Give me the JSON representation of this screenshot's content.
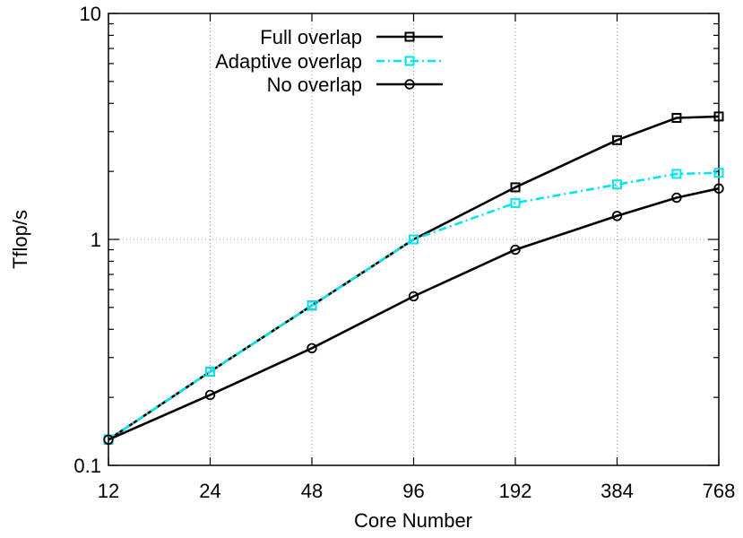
{
  "chart_data": {
    "type": "line",
    "xlabel": "Core Number",
    "ylabel": "Tflop/s",
    "x_scale": "log2",
    "y_scale": "log10",
    "xlim": [
      12,
      768
    ],
    "ylim": [
      0.1,
      10
    ],
    "x_ticks": [
      12,
      24,
      48,
      96,
      192,
      384,
      768
    ],
    "x_tick_labels": [
      "12",
      "24",
      "48",
      "96",
      "192",
      "384",
      "768"
    ],
    "y_ticks": [
      0.1,
      1,
      10
    ],
    "y_tick_labels": [
      "0.1",
      "1",
      "10"
    ],
    "grid": true,
    "legend_position": "top-center",
    "series": [
      {
        "name": "Full overlap",
        "color": "#000000",
        "marker": "square",
        "dash": "solid",
        "x": [
          12,
          24,
          48,
          96,
          192,
          384,
          576,
          768
        ],
        "y": [
          0.13,
          0.26,
          0.51,
          1.0,
          1.7,
          2.75,
          3.45,
          3.5
        ]
      },
      {
        "name": "Adaptive overlap",
        "color": "#00e5ee",
        "marker": "square",
        "dash": "dashdot",
        "x": [
          12,
          24,
          48,
          96,
          192,
          384,
          576,
          768
        ],
        "y": [
          0.13,
          0.26,
          0.51,
          1.0,
          1.45,
          1.75,
          1.95,
          1.97
        ]
      },
      {
        "name": "No overlap",
        "color": "#000000",
        "marker": "circle",
        "dash": "solid",
        "x": [
          12,
          24,
          48,
          96,
          192,
          384,
          576,
          768
        ],
        "y": [
          0.13,
          0.205,
          0.33,
          0.56,
          0.9,
          1.27,
          1.53,
          1.68
        ]
      }
    ]
  }
}
